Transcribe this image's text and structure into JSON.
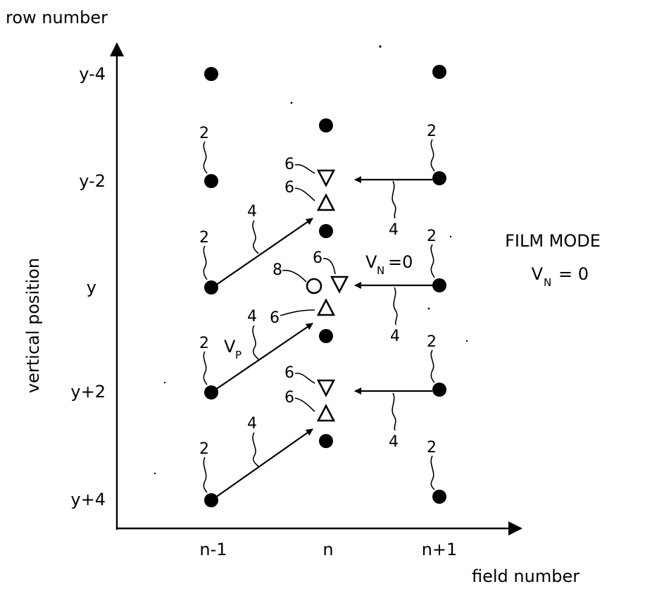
{
  "axes": {
    "y_label": "row number",
    "x_label": "field number",
    "y_side_label": "vertical position",
    "y_ticks": [
      "y-4",
      "y-2",
      "y",
      "y+2",
      "y+4"
    ],
    "x_ticks": [
      "n-1",
      "n",
      "n+1"
    ]
  },
  "mode": {
    "title": "FILM MODE",
    "eq_symbol": "V",
    "eq_sub": "N",
    "eq_rest": "= 0"
  },
  "vector_labels": {
    "vn_symbol": "V",
    "vn_sub": "N",
    "vn_rest": "=0",
    "vp_symbol": "V",
    "vp_sub": "P"
  },
  "refs": {
    "pixel": "2",
    "vector": "4",
    "interp": "6",
    "output": "8"
  }
}
